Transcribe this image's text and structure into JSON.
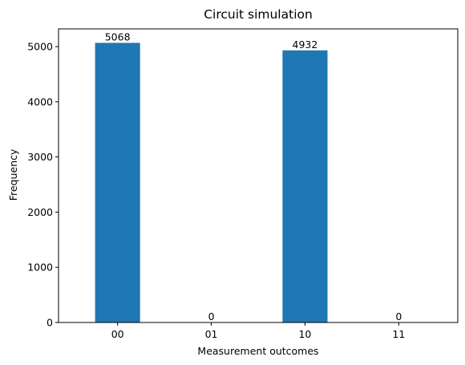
{
  "chart_data": {
    "type": "bar",
    "title": "Circuit simulation",
    "xlabel": "Measurement outcomes",
    "ylabel": "Frequency",
    "categories": [
      "00",
      "01",
      "10",
      "11"
    ],
    "values": [
      5068,
      0,
      4932,
      0
    ],
    "data_labels": [
      "5068",
      "0",
      "4932",
      "0"
    ],
    "yticks": [
      0,
      1000,
      2000,
      3000,
      4000,
      5000
    ],
    "ytick_labels": [
      "0",
      "1000",
      "2000",
      "3000",
      "4000",
      "5000"
    ],
    "ylim": [
      0,
      5321.4
    ],
    "grid": false,
    "legend": "none",
    "bar_color": "#1f77b4",
    "axis_color": "#000000",
    "background_color": "#ffffff"
  }
}
